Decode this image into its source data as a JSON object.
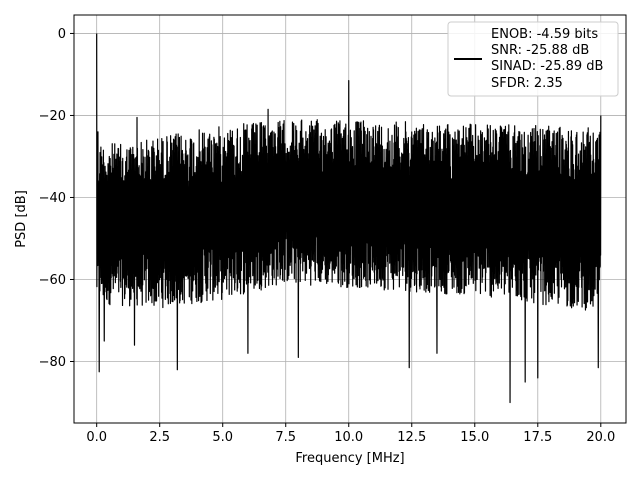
{
  "chart_data": {
    "type": "line",
    "title": "",
    "xlabel": "Frequency [MHz]",
    "ylabel": "PSD [dB]",
    "xlim": [
      -0.9,
      21.0
    ],
    "ylim": [
      -95,
      4.5
    ],
    "x_ticks": [
      0.0,
      2.5,
      5.0,
      7.5,
      10.0,
      12.5,
      15.0,
      17.5,
      20.0
    ],
    "x_tick_labels": [
      "0.0",
      "2.5",
      "5.0",
      "7.5",
      "10.0",
      "12.5",
      "15.0",
      "17.5",
      "20.0"
    ],
    "y_ticks": [
      0,
      -20,
      -40,
      -60,
      -80
    ],
    "y_tick_labels": [
      "0",
      "−20",
      "−40",
      "−60",
      "−80"
    ],
    "grid": true,
    "legend_position": "top-right",
    "series": [
      {
        "color": "#000000",
        "x_range": [
          0,
          20
        ],
        "legend_lines": [
          "ENOB: -4.59 bits",
          "SNR: -25.88 dB",
          "SINAD: -25.89 dB",
          "SFDR: 2.35"
        ],
        "upper_envelope": [
          [
            0,
            -26
          ],
          [
            1,
            -27
          ],
          [
            2.5,
            -25
          ],
          [
            5,
            -22.5
          ],
          [
            7.5,
            -21
          ],
          [
            10,
            -21
          ],
          [
            12.5,
            -21.5
          ],
          [
            15,
            -22
          ],
          [
            17.5,
            -22.5
          ],
          [
            20,
            -23
          ]
        ],
        "lower_envelope": [
          [
            0,
            -66
          ],
          [
            2.5,
            -67
          ],
          [
            5,
            -65
          ],
          [
            7.5,
            -61
          ],
          [
            10,
            -62
          ],
          [
            12.5,
            -63
          ],
          [
            15,
            -64
          ],
          [
            17.5,
            -66
          ],
          [
            20,
            -68
          ]
        ],
        "peaks": [
          [
            0.0,
            0.0
          ],
          [
            0.05,
            -24
          ],
          [
            1.6,
            -20.5
          ],
          [
            6.8,
            -18.5
          ],
          [
            10.0,
            -11.5
          ],
          [
            20.0,
            -20
          ]
        ],
        "dips": [
          [
            0.1,
            -82.5
          ],
          [
            0.3,
            -75
          ],
          [
            1.5,
            -76
          ],
          [
            3.2,
            -82
          ],
          [
            6.0,
            -78
          ],
          [
            8.0,
            -79
          ],
          [
            12.4,
            -81.5
          ],
          [
            13.5,
            -78
          ],
          [
            16.4,
            -90
          ],
          [
            17.0,
            -85
          ],
          [
            17.5,
            -84
          ],
          [
            19.9,
            -81.5
          ]
        ]
      }
    ]
  }
}
